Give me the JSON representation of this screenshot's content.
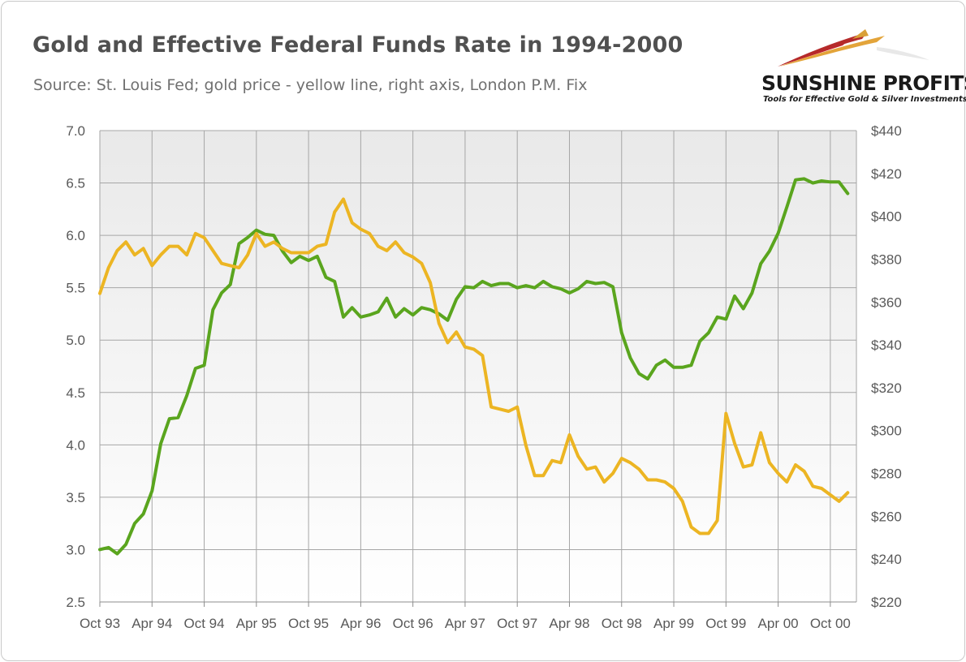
{
  "header": {
    "title": "Gold and Effective Federal Funds Rate in 1994-2000",
    "subtitle": "Source: St. Louis Fed; gold price - yellow line, right axis, London P.M. Fix"
  },
  "logo": {
    "name": "SUNSHINE PROFITS",
    "tagline": "Tools for Effective Gold & Silver Investments"
  },
  "colors": {
    "fed_funds": "#5aa51e",
    "gold": "#ecb523",
    "grid": "#a6a6a6",
    "plot_bg_top": "#e9e9e9",
    "plot_bg_bottom": "#ffffff"
  },
  "chart_data": {
    "type": "line",
    "x_ticks": [
      "Oct 93",
      "Apr 94",
      "Oct 94",
      "Apr 95",
      "Oct 95",
      "Apr 96",
      "Oct 96",
      "Apr 97",
      "Oct 97",
      "Apr 98",
      "Oct 98",
      "Apr 99",
      "Oct 99",
      "Apr 00",
      "Oct 00"
    ],
    "x_start": "1993-10",
    "x_end": "2001-01",
    "y_left": {
      "min": 2.5,
      "max": 7.0,
      "step": 0.5,
      "ticks": [
        "2.5",
        "3.0",
        "3.5",
        "4.0",
        "4.5",
        "5.0",
        "5.5",
        "6.0",
        "6.5",
        "7.0"
      ]
    },
    "y_right": {
      "min": 220,
      "max": 440,
      "step": 20,
      "ticks": [
        "$220",
        "$240",
        "$260",
        "$280",
        "$300",
        "$320",
        "$340",
        "$360",
        "$380",
        "$400",
        "$420",
        "$440"
      ]
    },
    "grid": true,
    "legend": "none",
    "series": [
      {
        "axis": "left",
        "color": "#5aa51e",
        "values": [
          3.0,
          3.02,
          2.96,
          3.05,
          3.25,
          3.34,
          3.56,
          4.01,
          4.25,
          4.26,
          4.47,
          4.73,
          4.76,
          5.29,
          5.45,
          5.53,
          5.92,
          5.98,
          6.05,
          6.01,
          6.0,
          5.85,
          5.74,
          5.8,
          5.76,
          5.8,
          5.6,
          5.56,
          5.22,
          5.31,
          5.22,
          5.24,
          5.27,
          5.4,
          5.22,
          5.3,
          5.24,
          5.31,
          5.29,
          5.25,
          5.19,
          5.39,
          5.51,
          5.5,
          5.56,
          5.52,
          5.54,
          5.54,
          5.5,
          5.52,
          5.5,
          5.56,
          5.51,
          5.49,
          5.45,
          5.49,
          5.56,
          5.54,
          5.55,
          5.51,
          5.07,
          4.83,
          4.68,
          4.63,
          4.76,
          4.81,
          4.74,
          4.74,
          4.76,
          4.99,
          5.07,
          5.22,
          5.2,
          5.42,
          5.3,
          5.45,
          5.73,
          5.85,
          6.02,
          6.27,
          6.53,
          6.54,
          6.5,
          6.52,
          6.51,
          6.51,
          6.4
        ]
      },
      {
        "axis": "right",
        "color": "#ecb523",
        "values": [
          364,
          376,
          384,
          388,
          382,
          385,
          377,
          382,
          386,
          386,
          382,
          392,
          390,
          384,
          378,
          377,
          376,
          382,
          392,
          386,
          388,
          385,
          383,
          383,
          383,
          386,
          387,
          402,
          408,
          397,
          394,
          392,
          386,
          384,
          388,
          383,
          381,
          378,
          369,
          350,
          341,
          346,
          339,
          338,
          335,
          311,
          310,
          309,
          311,
          293,
          279,
          279,
          286,
          285,
          298,
          288,
          282,
          283,
          276,
          280,
          287,
          285,
          282,
          277,
          277,
          276,
          273,
          267,
          255,
          252,
          252,
          258,
          308,
          294,
          283,
          284,
          299,
          285,
          280,
          276,
          284,
          281,
          274,
          273,
          270,
          267,
          271
        ]
      }
    ]
  }
}
